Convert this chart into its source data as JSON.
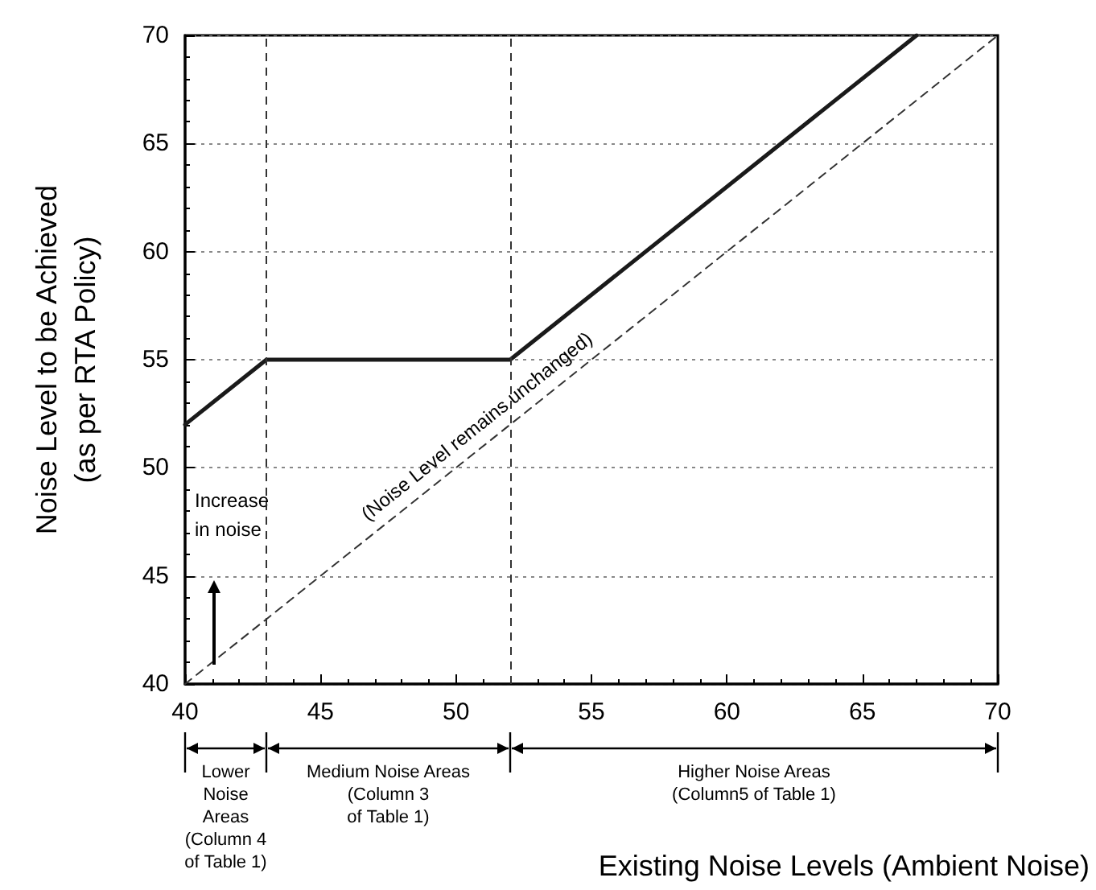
{
  "chart_data": {
    "type": "line",
    "xlabel": "Existing Noise Levels (Ambient Noise)",
    "ylabel": "Noise Level to be Achieved\n(as per RTA Policy)",
    "xlim": [
      40,
      70
    ],
    "ylim": [
      40,
      70
    ],
    "xticks": [
      40,
      45,
      50,
      55,
      60,
      65,
      70
    ],
    "yticks": [
      40,
      45,
      50,
      55,
      60,
      65,
      70
    ],
    "grid": "y",
    "marker": "none",
    "series": [
      {
        "color": "#1a1a1a",
        "x": [
          40,
          43,
          52,
          67
        ],
        "values": [
          52,
          55,
          55,
          70
        ],
        "line_style": "solid"
      },
      {
        "color": "#333333",
        "x": [
          40,
          70
        ],
        "values": [
          40,
          70
        ],
        "line_style": "dashed"
      }
    ],
    "ref_lines": [
      {
        "axis": "x",
        "value": 43,
        "color": "#333333",
        "line_style": "dashed"
      },
      {
        "axis": "x",
        "value": 52,
        "color": "#333333",
        "line_style": "dashed"
      }
    ],
    "annotations": [
      "Increase\nin noise",
      "(Noise Level remains unchanged)",
      "Lower\nNoise\nAreas\n(Column 4\nof Table 1)",
      "Medium Noise Areas\n(Column 3\nof Table 1)",
      "Higher Noise Areas\n(Column5 of Table 1)"
    ]
  }
}
